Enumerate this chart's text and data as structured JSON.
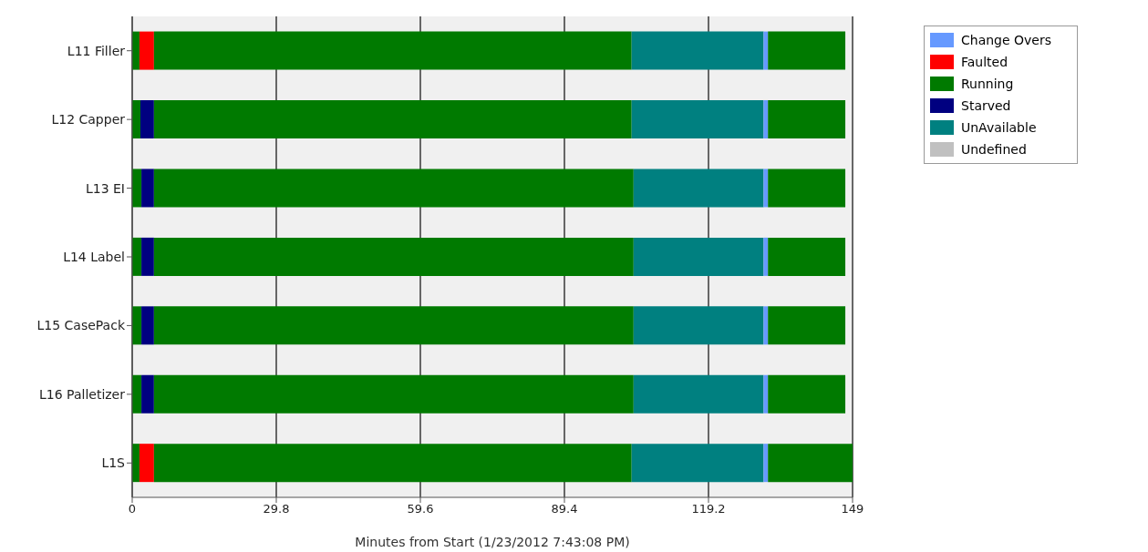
{
  "chart_data": {
    "type": "bar",
    "orientation": "horizontal",
    "stacked": true,
    "xlabel": "Minutes from Start (1/23/2012 7:43:08 PM)",
    "categories": [
      "L11 Filler",
      "L12 Capper",
      "L13 EI",
      "L14 Label",
      "L15 CasePack",
      "L16 Palletizer",
      "L1S"
    ],
    "series": [
      {
        "name": "Running",
        "color": "#007a00",
        "values": [
          1.5,
          1.7,
          1.9,
          1.9,
          1.9,
          1.9,
          1.5
        ]
      },
      {
        "name": "Faulted",
        "color": "#ff0000",
        "values": [
          3.0,
          null,
          null,
          null,
          null,
          null,
          3.0
        ]
      },
      {
        "name": "Starved",
        "color": "#000080",
        "values": [
          null,
          2.8,
          2.6,
          2.6,
          2.6,
          2.6,
          null
        ]
      },
      {
        "color": "#007a00",
        "values": [
          98.8,
          98.8,
          99.2,
          99.2,
          99.2,
          99.2,
          98.8
        ]
      },
      {
        "name": "UnAvailable",
        "color": "#008080",
        "values": [
          27.3,
          27.3,
          26.9,
          26.9,
          26.9,
          26.9,
          27.3
        ]
      },
      {
        "name": "Change Overs",
        "color": "#6699ff",
        "values": [
          0.9,
          0.9,
          0.9,
          0.9,
          0.9,
          0.9,
          0.9
        ]
      },
      {
        "color": "#007a00",
        "values": [
          16.0,
          16.0,
          16.0,
          16.0,
          16.0,
          16.0,
          17.5
        ]
      },
      {
        "name": "Undefined",
        "color": "#c0c0c0",
        "values": [
          null,
          null,
          null,
          null,
          null,
          null,
          null
        ]
      }
    ],
    "xlim": [
      0,
      149
    ],
    "xticks": [
      0,
      29.8,
      59.6,
      89.4,
      119.2,
      149
    ],
    "grid": "x",
    "legend": "top right"
  }
}
